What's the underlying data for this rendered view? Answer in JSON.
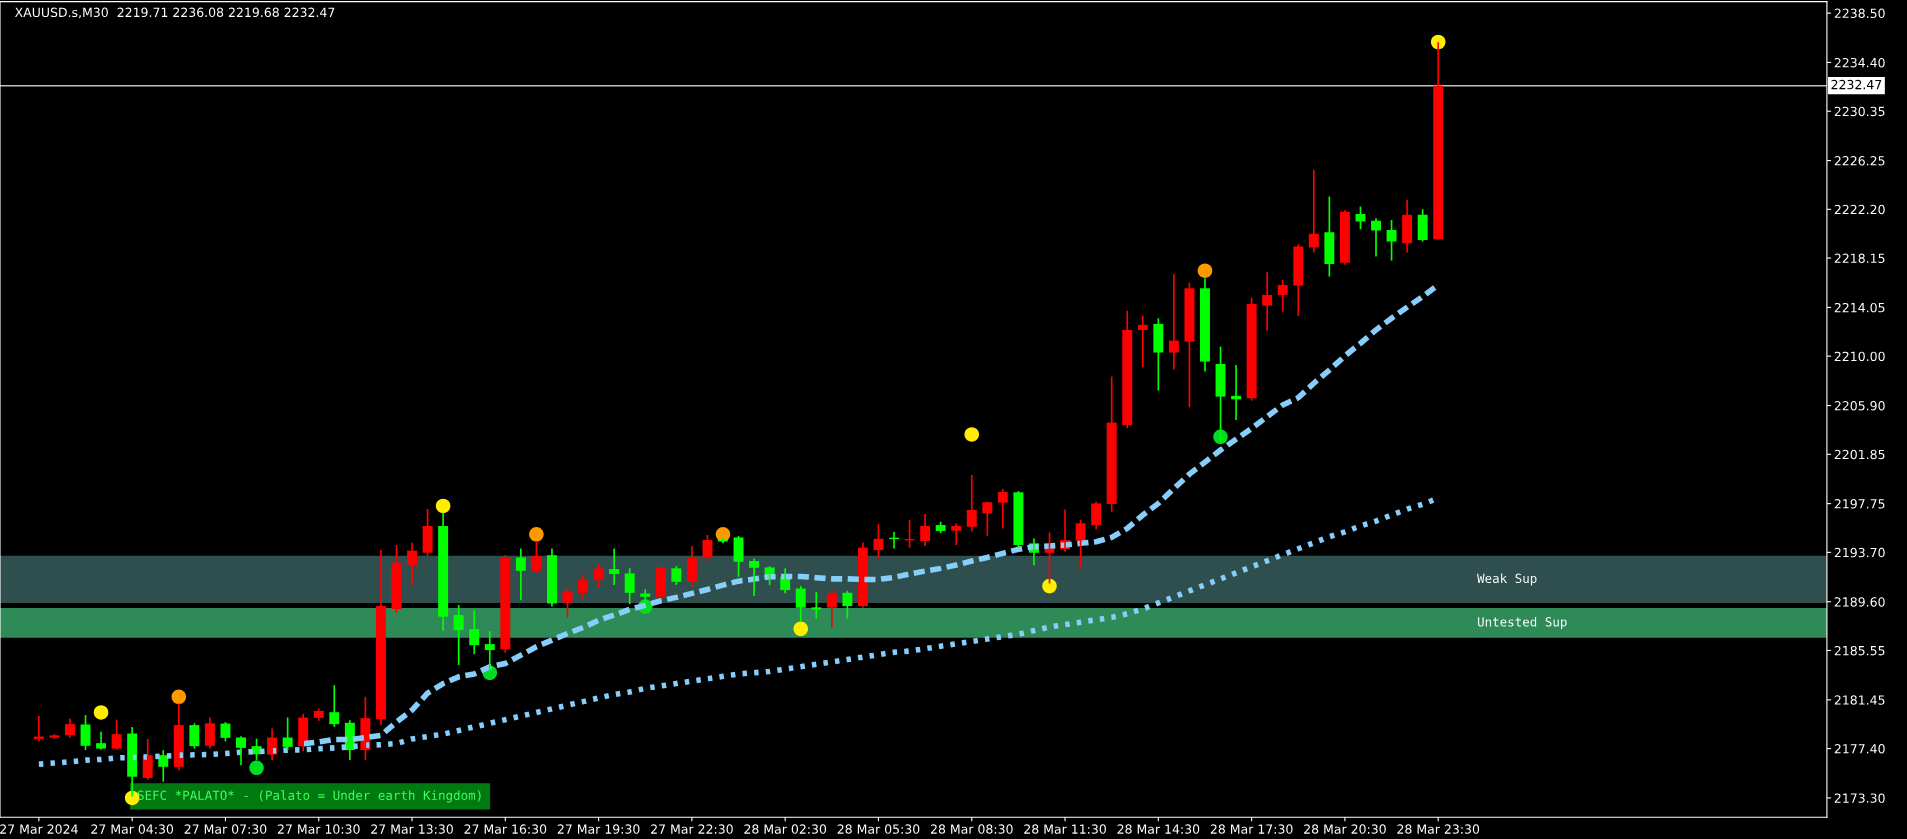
{
  "chart_data": {
    "type": "candlestick",
    "title": "XAUUSD.s,M30  2219.71 2236.08 2219.68 2232.47",
    "categories": [
      "27 Mar 2024",
      null,
      null,
      null,
      null,
      null,
      "27 Mar 04:30",
      null,
      null,
      null,
      null,
      null,
      "27 Mar 07:30",
      null,
      null,
      null,
      null,
      null,
      "27 Mar 10:30",
      null,
      null,
      null,
      null,
      null,
      "27 Mar 13:30",
      null,
      null,
      null,
      null,
      null,
      "27 Mar 16:30",
      null,
      null,
      null,
      null,
      null,
      "27 Mar 19:30",
      null,
      null,
      null,
      null,
      null,
      "27 Mar 22:30",
      null,
      null,
      null,
      null,
      null,
      "28 Mar 02:30",
      null,
      null,
      null,
      null,
      null,
      "28 Mar 05:30",
      null,
      null,
      null,
      null,
      null,
      "28 Mar 08:30",
      null,
      null,
      null,
      null,
      null,
      "28 Mar 11:30",
      null,
      null,
      null,
      null,
      null,
      "28 Mar 14:30",
      null,
      null,
      null,
      null,
      null,
      "28 Mar 17:30",
      null,
      null,
      null,
      null,
      null,
      "28 Mar 20:30",
      null,
      null,
      null,
      null,
      null,
      "28 Mar 23:30"
    ],
    "ohlc": [
      [
        2178.2,
        2180.1,
        2178.0,
        2178.4
      ],
      [
        2178.3,
        2178.6,
        2178.2,
        2178.5
      ],
      [
        2178.51,
        2179.9,
        2178.3,
        2179.43
      ],
      [
        2179.4,
        2180.18,
        2177.27,
        2177.63
      ],
      [
        2177.85,
        2178.8,
        2177.3,
        2177.4
      ],
      [
        2177.4,
        2179.8,
        2177.3,
        2178.6
      ],
      [
        2178.65,
        2179.2,
        2173.4,
        2175.05
      ],
      [
        2174.96,
        2178.2,
        2174.8,
        2176.85
      ],
      [
        2176.85,
        2177.27,
        2174.64,
        2175.88
      ],
      [
        2175.88,
        2181.15,
        2175.6,
        2179.35
      ],
      [
        2179.35,
        2179.5,
        2177.4,
        2177.6
      ],
      [
        2177.63,
        2179.98,
        2177.4,
        2179.5
      ],
      [
        2179.48,
        2179.6,
        2178.0,
        2178.29
      ],
      [
        2178.32,
        2178.43,
        2176.02,
        2177.46
      ],
      [
        2177.6,
        2178.23,
        2176.44,
        2176.93
      ],
      [
        2176.9,
        2179.07,
        2176.44,
        2178.32
      ],
      [
        2178.32,
        2179.98,
        2177.3,
        2177.54
      ],
      [
        2177.6,
        2180.3,
        2177.2,
        2179.98
      ],
      [
        2179.95,
        2180.73,
        2179.7,
        2180.53
      ],
      [
        2180.42,
        2182.67,
        2179.2,
        2179.43
      ],
      [
        2179.54,
        2179.76,
        2176.44,
        2177.27
      ],
      [
        2177.27,
        2181.7,
        2176.44,
        2179.93
      ],
      [
        2179.84,
        2193.89,
        2179.35,
        2189.24
      ],
      [
        2188.99,
        2194.31,
        2188.68,
        2192.84
      ],
      [
        2192.64,
        2194.5,
        2190.9,
        2193.84
      ],
      [
        2193.67,
        2197.3,
        2193.4,
        2195.89
      ],
      [
        2195.89,
        2197.0,
        2187.19,
        2188.35
      ],
      [
        2188.49,
        2189.32,
        2184.33,
        2187.24
      ],
      [
        2187.32,
        2188.9,
        2185.25,
        2185.99
      ],
      [
        2186.08,
        2187.16,
        2183.92,
        2185.58
      ],
      [
        2185.66,
        2193.47,
        2185.36,
        2193.28
      ],
      [
        2193.28,
        2194.03,
        2189.73,
        2192.17
      ],
      [
        2192.17,
        2194.64,
        2191.9,
        2193.39
      ],
      [
        2193.47,
        2194.03,
        2189.2,
        2189.46
      ],
      [
        2189.51,
        2190.84,
        2188.27,
        2190.48
      ],
      [
        2190.34,
        2191.87,
        2189.73,
        2191.4
      ],
      [
        2191.4,
        2192.73,
        2190.79,
        2192.37
      ],
      [
        2192.31,
        2194.03,
        2190.98,
        2191.9
      ],
      [
        2191.95,
        2192.37,
        2189.4,
        2190.34
      ],
      [
        2190.28,
        2190.62,
        2189.6,
        2190.01
      ],
      [
        2190.01,
        2192.5,
        2189.9,
        2192.45
      ],
      [
        2192.37,
        2192.56,
        2191.0,
        2191.26
      ],
      [
        2191.26,
        2194.2,
        2190.84,
        2193.28
      ],
      [
        2193.28,
        2195.14,
        2192.92,
        2194.72
      ],
      [
        2194.72,
        2194.9,
        2194.45,
        2194.6
      ],
      [
        2194.94,
        2195.06,
        2191.67,
        2192.92
      ],
      [
        2192.98,
        2193.2,
        2190.07,
        2192.42
      ],
      [
        2192.45,
        2192.56,
        2190.98,
        2191.48
      ],
      [
        2191.67,
        2192.37,
        2190.3,
        2190.56
      ],
      [
        2190.7,
        2190.9,
        2187.93,
        2189.1
      ],
      [
        2189.13,
        2190.43,
        2188.21,
        2188.96
      ],
      [
        2189.1,
        2190.62,
        2187.44,
        2190.29
      ],
      [
        2190.34,
        2190.51,
        2188.21,
        2189.24
      ],
      [
        2189.24,
        2194.53,
        2189.1,
        2194.09
      ],
      [
        2193.89,
        2196.05,
        2193.2,
        2194.83
      ],
      [
        2194.92,
        2195.42,
        2194.03,
        2194.8
      ],
      [
        2194.7,
        2196.39,
        2194.09,
        2194.8
      ],
      [
        2194.64,
        2196.88,
        2194.23,
        2195.89
      ],
      [
        2195.97,
        2196.25,
        2195.3,
        2195.47
      ],
      [
        2195.5,
        2196.11,
        2194.31,
        2195.89
      ],
      [
        2195.83,
        2200.13,
        2195.42,
        2197.22
      ],
      [
        2196.94,
        2197.91,
        2195.08,
        2197.86
      ],
      [
        2197.83,
        2198.96,
        2195.69,
        2198.71
      ],
      [
        2198.69,
        2198.8,
        2194.1,
        2194.31
      ],
      [
        2194.45,
        2194.86,
        2192.64,
        2193.67
      ],
      [
        2193.67,
        2195.36,
        2191.12,
        2194.03
      ],
      [
        2193.98,
        2197.27,
        2193.76,
        2194.72
      ],
      [
        2194.67,
        2196.39,
        2192.37,
        2196.11
      ],
      [
        2195.97,
        2197.91,
        2195.6,
        2197.77
      ],
      [
        2197.72,
        2208.3,
        2197.08,
        2204.48
      ],
      [
        2204.28,
        2213.76,
        2204.01,
        2212.18
      ],
      [
        2212.18,
        2213.37,
        2209.08,
        2212.6
      ],
      [
        2212.68,
        2213.15,
        2207.14,
        2210.3
      ],
      [
        2210.3,
        2216.83,
        2208.9,
        2211.29
      ],
      [
        2211.21,
        2216.11,
        2205.75,
        2215.64
      ],
      [
        2215.64,
        2216.47,
        2208.72,
        2209.55
      ],
      [
        2209.35,
        2210.79,
        2203.0,
        2206.64
      ],
      [
        2206.7,
        2209.27,
        2204.7,
        2206.42
      ],
      [
        2206.5,
        2214.87,
        2206.3,
        2214.34
      ],
      [
        2214.2,
        2216.97,
        2212.1,
        2215.09
      ],
      [
        2215.09,
        2216.33,
        2213.7,
        2215.92
      ],
      [
        2215.86,
        2219.3,
        2213.34,
        2219.11
      ],
      [
        2219.02,
        2225.48,
        2218.61,
        2220.16
      ],
      [
        2220.3,
        2223.26,
        2216.61,
        2217.66
      ],
      [
        2217.77,
        2222.15,
        2217.6,
        2222.0
      ],
      [
        2221.82,
        2222.43,
        2220.55,
        2221.18
      ],
      [
        2221.24,
        2221.46,
        2218.27,
        2220.44
      ],
      [
        2220.49,
        2221.32,
        2217.94,
        2219.52
      ],
      [
        2219.38,
        2222.99,
        2218.61,
        2221.74
      ],
      [
        2221.74,
        2222.2,
        2219.52,
        2219.66
      ],
      [
        2219.71,
        2236.08,
        2219.68,
        2232.47
      ]
    ],
    "colors": [
      "#ff0000",
      "#ff0000",
      "#ff0000",
      "#00ff00",
      "#00ff00",
      "#ff0000",
      "#00ff00",
      "#ff0000",
      "#00ff00",
      "#ff0000",
      "#00ff00",
      "#ff0000",
      "#00ff00",
      "#00ff00",
      "#00ff00",
      "#ff0000",
      "#00ff00",
      "#ff0000",
      "#ff0000",
      "#00ff00",
      "#00ff00",
      "#ff0000",
      "#ff0000",
      "#ff0000",
      "#ff0000",
      "#ff0000",
      "#00ff00",
      "#00ff00",
      "#00ff00",
      "#00ff00",
      "#ff0000",
      "#00ff00",
      "#ff0000",
      "#00ff00",
      "#ff0000",
      "#ff0000",
      "#ff0000",
      "#00ff00",
      "#00ff00",
      "#00ff00",
      "#ff0000",
      "#00ff00",
      "#ff0000",
      "#ff0000",
      "#00ff00",
      "#00ff00",
      "#00ff00",
      "#00ff00",
      "#00ff00",
      "#00ff00",
      "#00ff00",
      "#ff0000",
      "#00ff00",
      "#ff0000",
      "#ff0000",
      "#00ff00",
      "#ff0000",
      "#ff0000",
      "#00ff00",
      "#ff0000",
      "#ff0000",
      "#ff0000",
      "#ff0000",
      "#00ff00",
      "#00ff00",
      "#ff0000",
      "#ff0000",
      "#ff0000",
      "#ff0000",
      "#ff0000",
      "#ff0000",
      "#ff0000",
      "#00ff00",
      "#ff0000",
      "#ff0000",
      "#00ff00",
      "#00ff00",
      "#00ff00",
      "#ff0000",
      "#ff0000",
      "#ff0000",
      "#ff0000",
      "#ff0000",
      "#00ff00",
      "#ff0000",
      "#00ff00",
      "#00ff00",
      "#00ff00",
      "#ff0000",
      "#00ff00",
      "#ff0000"
    ],
    "series": [
      {
        "type": "line",
        "color": "#87cefa",
        "line_style": "dashed",
        "values": [
          null,
          null,
          null,
          null,
          null,
          null,
          null,
          null,
          null,
          null,
          null,
          null,
          null,
          null,
          null,
          null,
          null,
          2177.8,
          2177.96,
          2178.15,
          2178.15,
          2178.32,
          2178.5,
          2179.6,
          2180.6,
          2182.0,
          2182.8,
          2183.36,
          2183.6,
          2184.2,
          2184.47,
          2185.16,
          2185.86,
          2186.41,
          2186.96,
          2187.46,
          2188.07,
          2188.49,
          2188.96,
          2189.3,
          2189.68,
          2189.96,
          2190.29,
          2190.62,
          2190.98,
          2191.31,
          2191.48,
          2191.67,
          2191.7,
          2191.7,
          2191.6,
          2191.5,
          2191.5,
          2191.45,
          2191.45,
          2191.62,
          2191.9,
          2192.15,
          2192.37,
          2192.65,
          2192.98,
          2193.28,
          2193.62,
          2193.95,
          2194.17,
          2194.23,
          2194.31,
          2194.45,
          2194.58,
          2194.95,
          2195.69,
          2196.8,
          2197.77,
          2199.0,
          2200.2,
          2201.2,
          2202.2,
          2203.1,
          2204.0,
          2204.97,
          2205.94,
          2206.55,
          2207.75,
          2208.85,
          2210.02,
          2211.07,
          2212.18,
          2213.15,
          2214.06,
          2214.95,
          2215.92
        ]
      },
      {
        "type": "line",
        "color": "#87cefa",
        "line_style": "dotted",
        "values": [
          2176.1,
          2176.2,
          2176.3,
          2176.44,
          2176.5,
          2176.63,
          2176.66,
          2176.71,
          2176.77,
          2176.85,
          2176.88,
          2176.91,
          2176.99,
          2177.1,
          2177.15,
          2177.21,
          2177.27,
          2177.3,
          2177.38,
          2177.46,
          2177.54,
          2177.68,
          2177.72,
          2177.82,
          2178.2,
          2178.4,
          2178.6,
          2178.9,
          2179.2,
          2179.5,
          2179.8,
          2180.1,
          2180.4,
          2180.7,
          2181.0,
          2181.3,
          2181.6,
          2181.9,
          2182.1,
          2182.4,
          2182.6,
          2182.8,
          2183.0,
          2183.2,
          2183.4,
          2183.6,
          2183.7,
          2183.8,
          2184.0,
          2184.2,
          2184.4,
          2184.6,
          2184.8,
          2185.0,
          2185.2,
          2185.4,
          2185.5,
          2185.7,
          2185.9,
          2186.1,
          2186.3,
          2186.5,
          2186.7,
          2186.9,
          2187.2,
          2187.5,
          2187.7,
          2187.9,
          2188.1,
          2188.3,
          2188.6,
          2189.0,
          2189.5,
          2190.0,
          2190.5,
          2191.0,
          2191.5,
          2192.0,
          2192.5,
          2193.0,
          2193.5,
          2194.0,
          2194.5,
          2195.0,
          2195.4,
          2195.9,
          2196.3,
          2196.8,
          2197.3,
          2197.7,
          2198.2
        ]
      },
      {
        "type": "scatter",
        "color": "#ffee00",
        "marker": "circle",
        "values": [
          null,
          null,
          null,
          null,
          2180.4,
          null,
          2173.3,
          null,
          null,
          null,
          null,
          null,
          null,
          null,
          null,
          null,
          null,
          null,
          null,
          null,
          null,
          null,
          null,
          null,
          null,
          null,
          2197.56,
          null,
          null,
          null,
          null,
          null,
          null,
          null,
          null,
          null,
          null,
          null,
          null,
          null,
          null,
          null,
          null,
          null,
          null,
          null,
          null,
          null,
          null,
          2187.35,
          null,
          null,
          null,
          null,
          null,
          null,
          null,
          null,
          null,
          null,
          2203.5,
          null,
          null,
          null,
          null,
          2190.9,
          null,
          null,
          null,
          null,
          null,
          null,
          null,
          null,
          null,
          null,
          null,
          null,
          null,
          null,
          null,
          null,
          null,
          null,
          null,
          null,
          null,
          null,
          null,
          null,
          2236.1
        ]
      },
      {
        "type": "scatter",
        "color": "#ff9900",
        "marker": "circle",
        "values": [
          null,
          null,
          null,
          null,
          null,
          null,
          null,
          null,
          null,
          2181.7,
          null,
          null,
          null,
          null,
          null,
          null,
          null,
          null,
          null,
          null,
          null,
          null,
          null,
          null,
          null,
          null,
          null,
          null,
          null,
          null,
          null,
          null,
          2195.2,
          null,
          null,
          null,
          null,
          null,
          null,
          null,
          null,
          null,
          null,
          null,
          2195.2,
          null,
          null,
          null,
          null,
          null,
          null,
          null,
          null,
          null,
          null,
          null,
          null,
          null,
          null,
          null,
          null,
          null,
          null,
          null,
          null,
          null,
          null,
          null,
          null,
          null,
          null,
          null,
          null,
          null,
          null,
          2217.1,
          null,
          null,
          null,
          null,
          null,
          null,
          null,
          null,
          null,
          null,
          null,
          null,
          null,
          null,
          null
        ]
      },
      {
        "type": "scatter",
        "color": "#00dd22",
        "marker": "circle",
        "values": [
          null,
          null,
          null,
          null,
          null,
          null,
          null,
          null,
          null,
          null,
          null,
          null,
          null,
          null,
          2175.8,
          null,
          null,
          null,
          null,
          null,
          null,
          null,
          null,
          null,
          null,
          null,
          null,
          null,
          null,
          2183.7,
          null,
          null,
          null,
          null,
          null,
          null,
          null,
          null,
          null,
          2189.2,
          null,
          null,
          null,
          null,
          null,
          null,
          null,
          null,
          null,
          null,
          null,
          null,
          null,
          null,
          null,
          null,
          null,
          null,
          null,
          null,
          null,
          null,
          null,
          null,
          null,
          null,
          null,
          null,
          null,
          null,
          null,
          null,
          null,
          null,
          null,
          null,
          2203.3,
          null,
          null,
          null,
          null,
          null,
          null,
          null,
          null,
          null,
          null,
          null,
          null,
          null,
          null
        ]
      }
    ],
    "ylim": [
      2171.7,
      2239.45
    ],
    "yticks": [
      {
        "value": 2173.3,
        "label": "2173.30"
      },
      {
        "value": 2177.4,
        "label": "2177.40"
      },
      {
        "value": 2181.45,
        "label": "2181.45"
      },
      {
        "value": 2185.55,
        "label": "2185.55"
      },
      {
        "value": 2189.6,
        "label": "2189.60"
      },
      {
        "value": 2193.7,
        "label": "2193.70"
      },
      {
        "value": 2197.75,
        "label": "2197.75"
      },
      {
        "value": 2201.85,
        "label": "2201.85"
      },
      {
        "value": 2205.9,
        "label": "2205.90"
      },
      {
        "value": 2210.0,
        "label": "2210.00"
      },
      {
        "value": 2214.05,
        "label": "2214.05"
      },
      {
        "value": 2218.15,
        "label": "2218.15"
      },
      {
        "value": 2222.2,
        "label": "2222.20"
      },
      {
        "value": 2226.25,
        "label": "2226.25"
      },
      {
        "value": 2230.35,
        "label": "2230.35"
      },
      {
        "value": 2234.4,
        "label": "2234.40"
      },
      {
        "value": 2238.5,
        "label": "2238.50"
      }
    ],
    "ref_lines": [
      {
        "axis": "y",
        "value": 2232.47,
        "label": "2232.47",
        "color": "#c0c0c0"
      }
    ],
    "bands": [
      {
        "axis": "y",
        "from": 2189.49,
        "to": 2193.42,
        "label": "Weak Sup",
        "color": "#2f4f4f"
      },
      {
        "axis": "y",
        "from": 2186.6,
        "to": 2189.08,
        "label": "Untested Sup",
        "color": "#2e8b57"
      }
    ],
    "annotations": [
      "SEFC *PALATO* - (Palato = Under earth Kingdom)"
    ],
    "grid": false
  }
}
